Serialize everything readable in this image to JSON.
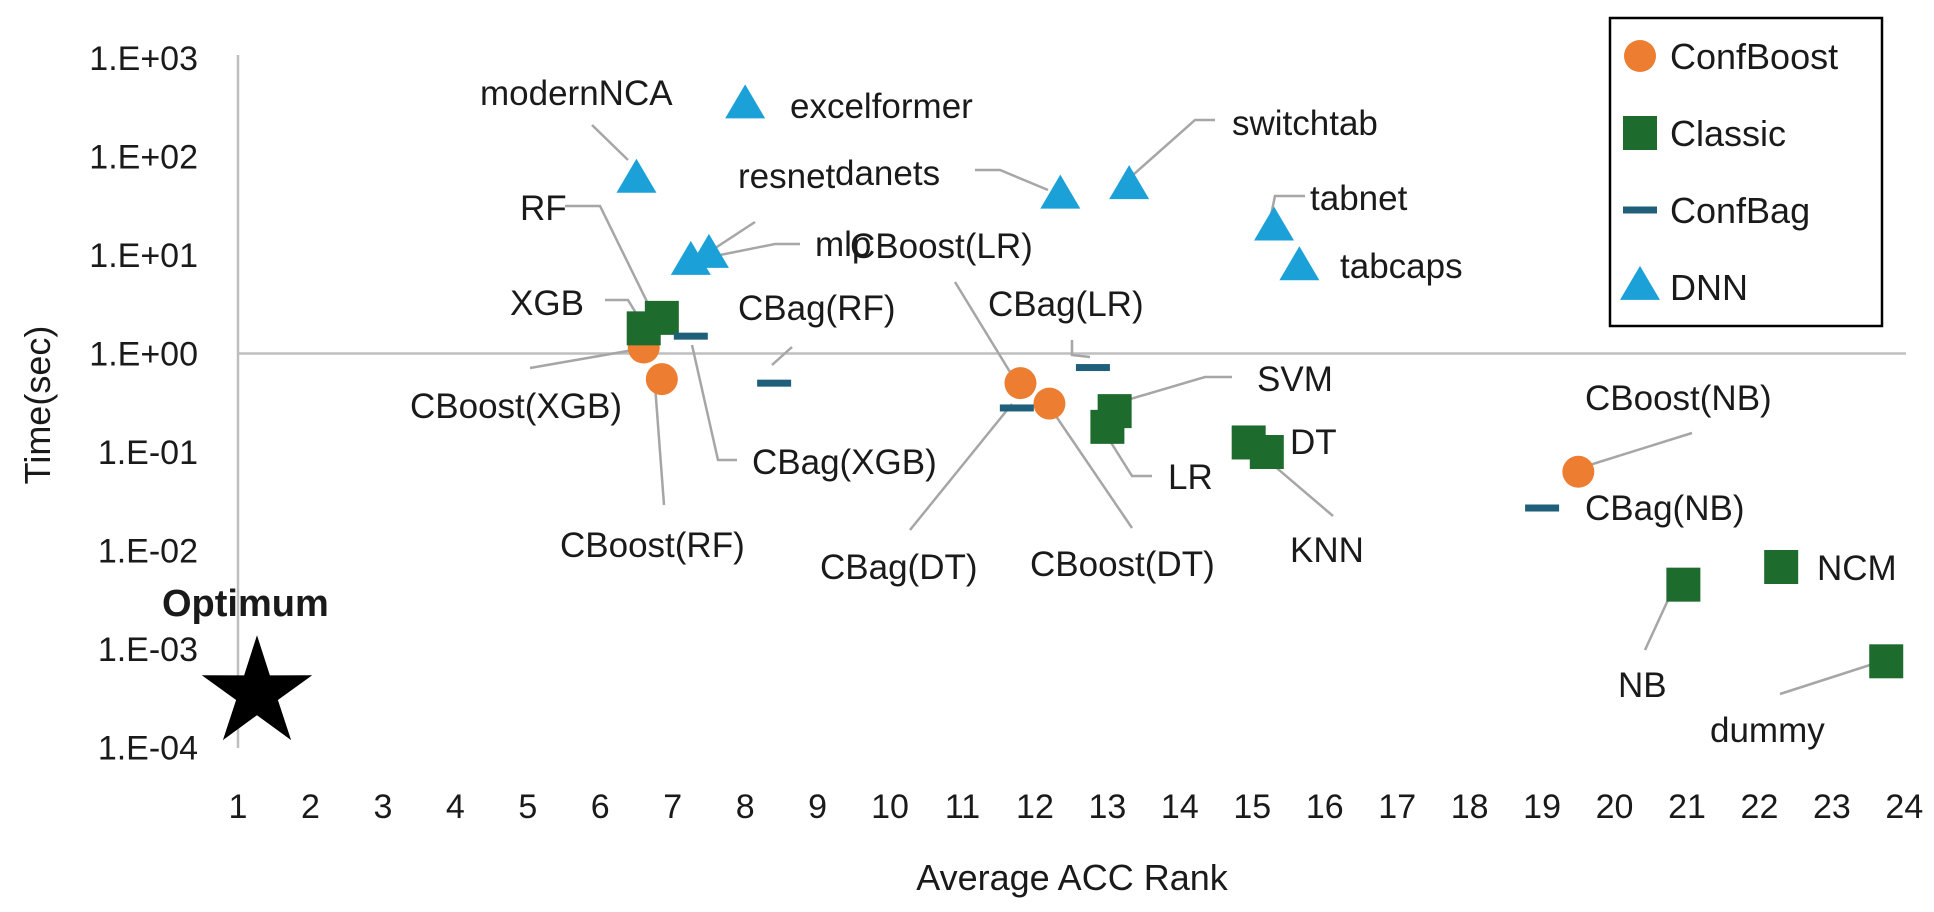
{
  "chart_data": {
    "type": "scatter",
    "xlabel": "Average ACC Rank",
    "ylabel": "Time(sec)",
    "xlim": [
      1,
      24
    ],
    "ylim": [
      0.0001,
      1000
    ],
    "y_scale": "log",
    "x_ticks": [
      "1",
      "2",
      "3",
      "4",
      "5",
      "6",
      "7",
      "8",
      "9",
      "10",
      "11",
      "12",
      "13",
      "14",
      "15",
      "16",
      "17",
      "18",
      "19",
      "20",
      "21",
      "22",
      "23",
      "24"
    ],
    "y_ticks": [
      "1.E-04",
      "1.E-03",
      "1.E-02",
      "1.E-01",
      "1.E+00",
      "1.E+01",
      "1.E+02",
      "1.E+03"
    ],
    "grid": "y=1 reference line",
    "legend_position": "top-right",
    "colors": {
      "ConfBoost": "#ED7D31",
      "Classic": "#1E6B2E",
      "ConfBag": "#1F5F7A",
      "DNN": "#1BA1D8",
      "leader": "#A6A6A6",
      "axis": "#BFBFBF"
    },
    "series": [
      {
        "name": "ConfBoost",
        "marker": "circle",
        "points": [
          {
            "label": "CBoost(XGB)",
            "x": 6.6,
            "y": 1.15
          },
          {
            "label": "CBoost(RF)",
            "x": 6.85,
            "y": 0.55
          },
          {
            "label": "CBoost(LR)",
            "x": 11.8,
            "y": 0.5
          },
          {
            "label": "CBoost(DT)",
            "x": 12.2,
            "y": 0.31
          },
          {
            "label": "CBoost(NB)",
            "x": 19.5,
            "y": 0.063
          }
        ]
      },
      {
        "name": "Classic",
        "marker": "square",
        "points": [
          {
            "label": "XGB",
            "x": 6.6,
            "y": 1.8
          },
          {
            "label": "RF",
            "x": 6.85,
            "y": 2.3
          },
          {
            "label": "SVM",
            "x": 13.1,
            "y": 0.26
          },
          {
            "label": "LR",
            "x": 13.0,
            "y": 0.18
          },
          {
            "label": "DT",
            "x": 14.95,
            "y": 0.125
          },
          {
            "label": "KNN",
            "x": 15.2,
            "y": 0.1
          },
          {
            "label": "NB",
            "x": 20.95,
            "y": 0.0045
          },
          {
            "label": "NCM",
            "x": 22.3,
            "y": 0.0068
          },
          {
            "label": "dummy",
            "x": 23.75,
            "y": 0.00075
          }
        ]
      },
      {
        "name": "ConfBag",
        "marker": "dash",
        "points": [
          {
            "label": "CBag(XGB)",
            "x": 7.25,
            "y": 1.5
          },
          {
            "label": "CBag(RF)",
            "x": 8.4,
            "y": 0.5
          },
          {
            "label": "CBag(LR)",
            "x": 12.8,
            "y": 0.72
          },
          {
            "label": "CBag(DT)",
            "x": 11.75,
            "y": 0.28
          },
          {
            "label": "CBag(NB)",
            "x": 19.0,
            "y": 0.027
          }
        ]
      },
      {
        "name": "DNN",
        "marker": "triangle",
        "points": [
          {
            "label": "modernNCA",
            "x": 6.5,
            "y": 58
          },
          {
            "label": "excelformer",
            "x": 8.0,
            "y": 330
          },
          {
            "label": "resnet",
            "x": 7.5,
            "y": 10
          },
          {
            "label": "mlp",
            "x": 7.25,
            "y": 8.5
          },
          {
            "label": "danets",
            "x": 12.35,
            "y": 40
          },
          {
            "label": "switchtab",
            "x": 13.3,
            "y": 50
          },
          {
            "label": "tabnet",
            "x": 15.3,
            "y": 19
          },
          {
            "label": "tabcaps",
            "x": 15.65,
            "y": 7.5
          }
        ]
      }
    ],
    "annotations": [
      {
        "label": "Optimum",
        "marker": "star",
        "x": 1.25,
        "y": 0.0004
      }
    ]
  }
}
